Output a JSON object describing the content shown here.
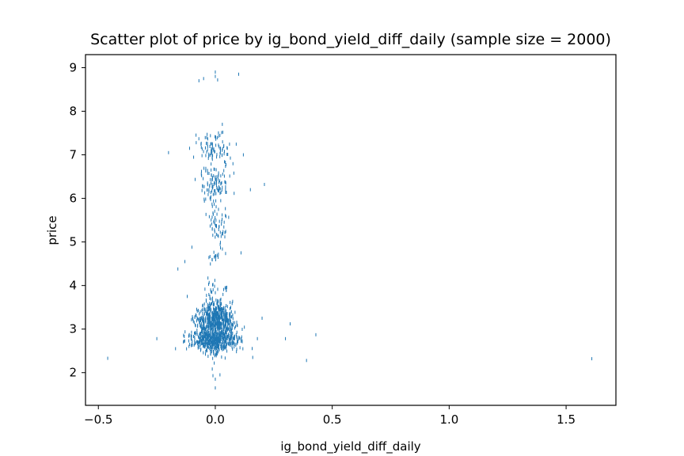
{
  "chart_data": {
    "type": "scatter",
    "title": "Scatter plot of price by ig_bond_yield_diff_daily (sample size = 2000)",
    "xlabel": "ig_bond_yield_diff_daily",
    "ylabel": "price",
    "xlim": [
      -0.555,
      1.713
    ],
    "ylim": [
      1.25,
      9.3
    ],
    "xticks": [
      -0.5,
      0.0,
      0.5,
      1.0,
      1.5
    ],
    "xtick_labels": [
      "−0.5",
      "0.0",
      "0.5",
      "1.0",
      "1.5"
    ],
    "yticks": [
      2,
      3,
      4,
      5,
      6,
      7,
      8,
      9
    ],
    "ytick_labels": [
      "2",
      "3",
      "4",
      "5",
      "6",
      "7",
      "8",
      "9"
    ],
    "grid": false,
    "marker_color": "#1f77b4",
    "sample_size": 2000,
    "outlier_points": [
      {
        "x": -0.46,
        "y": 2.33
      },
      {
        "x": -0.25,
        "y": 2.78
      },
      {
        "x": -0.2,
        "y": 7.05
      },
      {
        "x": -0.17,
        "y": 2.55
      },
      {
        "x": -0.16,
        "y": 4.38
      },
      {
        "x": -0.13,
        "y": 4.55
      },
      {
        "x": -0.12,
        "y": 3.75
      },
      {
        "x": -0.11,
        "y": 7.15
      },
      {
        "x": -0.1,
        "y": 4.88
      },
      {
        "x": -0.07,
        "y": 8.7
      },
      {
        "x": -0.05,
        "y": 8.75
      },
      {
        "x": -0.02,
        "y": 3.9
      },
      {
        "x": 0.0,
        "y": 8.9
      },
      {
        "x": 0.0,
        "y": 8.8
      },
      {
        "x": 0.01,
        "y": 8.72
      },
      {
        "x": 0.03,
        "y": 7.7
      },
      {
        "x": 0.0,
        "y": 1.85
      },
      {
        "x": 0.0,
        "y": 1.65
      },
      {
        "x": 0.02,
        "y": 1.95
      },
      {
        "x": -0.01,
        "y": 1.93
      },
      {
        "x": 0.1,
        "y": 8.85
      },
      {
        "x": 0.11,
        "y": 4.75
      },
      {
        "x": 0.12,
        "y": 7.0
      },
      {
        "x": 0.15,
        "y": 6.2
      },
      {
        "x": 0.16,
        "y": 2.35
      },
      {
        "x": 0.18,
        "y": 2.78
      },
      {
        "x": 0.2,
        "y": 3.25
      },
      {
        "x": 0.21,
        "y": 6.32
      },
      {
        "x": 0.3,
        "y": 2.78
      },
      {
        "x": 0.32,
        "y": 3.12
      },
      {
        "x": 0.39,
        "y": 2.28
      },
      {
        "x": 0.43,
        "y": 2.87
      },
      {
        "x": 1.61,
        "y": 2.32
      }
    ],
    "clusters": [
      {
        "x_center": 0.0,
        "x_spread": 0.045,
        "y_center": 3.2,
        "y_spread": 0.16,
        "count": 520
      },
      {
        "x_center": 0.0,
        "x_spread": 0.05,
        "y_center": 2.75,
        "y_spread": 0.14,
        "count": 520
      },
      {
        "x_center": 0.0,
        "x_spread": 0.03,
        "y_center": 3.45,
        "y_spread": 0.12,
        "count": 60
      },
      {
        "x_center": 0.0,
        "x_spread": 0.035,
        "y_center": 7.15,
        "y_spread": 0.17,
        "count": 85
      },
      {
        "x_center": 0.0,
        "x_spread": 0.035,
        "y_center": 6.35,
        "y_spread": 0.2,
        "count": 110
      },
      {
        "x_center": 0.01,
        "x_spread": 0.025,
        "y_center": 5.45,
        "y_spread": 0.25,
        "count": 60
      },
      {
        "x_center": 0.01,
        "x_spread": 0.035,
        "y_center": 3.85,
        "y_spread": 0.18,
        "count": 30
      },
      {
        "x_center": 0.0,
        "x_spread": 0.03,
        "y_center": 4.65,
        "y_spread": 0.06,
        "count": 14
      },
      {
        "x_center": 0.0,
        "x_spread": 0.02,
        "y_center": 2.3,
        "y_spread": 0.12,
        "count": 14
      }
    ]
  }
}
